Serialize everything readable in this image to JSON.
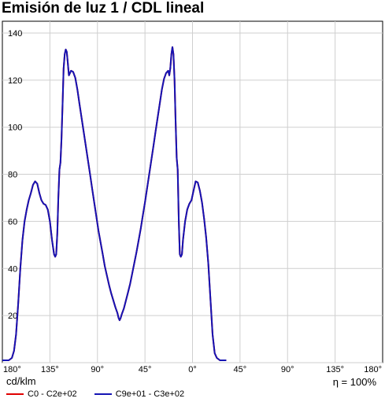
{
  "chart_data": {
    "type": "line",
    "title": "Emisión de luz 1 / CDL lineal",
    "ylabel": "cd/klm",
    "efficiency_label": "η = 100%",
    "ylim": [
      0,
      145
    ],
    "yticks": [
      20,
      40,
      60,
      80,
      100,
      120,
      140
    ],
    "xlim": [
      -180,
      180
    ],
    "xticks": [
      {
        "value": -180,
        "label": "180°"
      },
      {
        "value": -135,
        "label": "135°"
      },
      {
        "value": -90,
        "label": "90°"
      },
      {
        "value": -45,
        "label": "45°"
      },
      {
        "value": 0,
        "label": "0°"
      },
      {
        "value": 45,
        "label": "45°"
      },
      {
        "value": 90,
        "label": "90°"
      },
      {
        "value": 135,
        "label": "135°"
      },
      {
        "value": 180,
        "label": "180°"
      }
    ],
    "grid": true,
    "legend_position": "bottom",
    "series": [
      {
        "name": "C0 - C2e+02",
        "color": "#e00000",
        "points": [
          [
            -180,
            1
          ],
          [
            -177,
            1
          ],
          [
            -174,
            1
          ],
          [
            -171,
            2
          ],
          [
            -169,
            5
          ],
          [
            -167,
            12
          ],
          [
            -165,
            25
          ],
          [
            -163,
            40
          ],
          [
            -161,
            52
          ],
          [
            -159,
            60
          ],
          [
            -157,
            65
          ],
          [
            -155,
            69
          ],
          [
            -153,
            72
          ],
          [
            -151,
            75.5
          ],
          [
            -149,
            77
          ],
          [
            -147,
            76
          ],
          [
            -145,
            72
          ],
          [
            -143,
            69
          ],
          [
            -141,
            67.5
          ],
          [
            -139,
            67
          ],
          [
            -137,
            65
          ],
          [
            -135,
            60
          ],
          [
            -133,
            52
          ],
          [
            -131,
            46
          ],
          [
            -130,
            45
          ],
          [
            -129,
            46
          ],
          [
            -128,
            55
          ],
          [
            -127,
            70
          ],
          [
            -126,
            82
          ],
          [
            -125,
            85
          ],
          [
            -124,
            95
          ],
          [
            -123,
            110
          ],
          [
            -122,
            125
          ],
          [
            -121,
            131
          ],
          [
            -120,
            133
          ],
          [
            -119,
            132
          ],
          [
            -118,
            127
          ],
          [
            -117,
            122
          ],
          [
            -116,
            123
          ],
          [
            -115,
            124
          ],
          [
            -113,
            123.5
          ],
          [
            -111,
            121
          ],
          [
            -109,
            116
          ],
          [
            -107,
            110
          ],
          [
            -105,
            104
          ],
          [
            -103,
            98
          ],
          [
            -101,
            92
          ],
          [
            -99,
            86
          ],
          [
            -97,
            80
          ],
          [
            -95,
            74
          ],
          [
            -93,
            68
          ],
          [
            -91,
            62
          ],
          [
            -89,
            56
          ],
          [
            -87,
            51
          ],
          [
            -85,
            46
          ],
          [
            -83,
            41
          ],
          [
            -81,
            37
          ],
          [
            -79,
            33
          ],
          [
            -77,
            29.5
          ],
          [
            -75,
            26.5
          ],
          [
            -73,
            23.5
          ],
          [
            -71,
            21
          ],
          [
            -70,
            19
          ],
          [
            -69,
            18
          ],
          [
            -68,
            19
          ],
          [
            -67,
            20.5
          ],
          [
            -65,
            23
          ],
          [
            -63,
            26.5
          ],
          [
            -61,
            30
          ],
          [
            -59,
            33.5
          ],
          [
            -57,
            38
          ],
          [
            -55,
            42.5
          ],
          [
            -53,
            47
          ],
          [
            -51,
            52
          ],
          [
            -49,
            57
          ],
          [
            -47,
            62.5
          ],
          [
            -45,
            68
          ],
          [
            -43,
            74
          ],
          [
            -41,
            80
          ],
          [
            -39,
            86
          ],
          [
            -37,
            92
          ],
          [
            -35,
            98
          ],
          [
            -33,
            104
          ],
          [
            -31,
            110
          ],
          [
            -29,
            116
          ],
          [
            -27,
            120.5
          ],
          [
            -25,
            123
          ],
          [
            -23,
            124
          ],
          [
            -22,
            122
          ],
          [
            -21,
            125
          ],
          [
            -20,
            131
          ],
          [
            -19,
            134
          ],
          [
            -18,
            131
          ],
          [
            -17,
            120
          ],
          [
            -16,
            103
          ],
          [
            -15,
            87
          ],
          [
            -14,
            82
          ],
          [
            -13,
            60
          ],
          [
            -12,
            46
          ],
          [
            -11,
            45
          ],
          [
            -10,
            46
          ],
          [
            -9,
            52
          ],
          [
            -7,
            60
          ],
          [
            -5,
            65
          ],
          [
            -3,
            67.5
          ],
          [
            -1,
            69
          ],
          [
            1,
            73
          ],
          [
            3,
            77
          ],
          [
            5,
            76.5
          ],
          [
            7,
            73
          ],
          [
            9,
            68
          ],
          [
            11,
            61
          ],
          [
            13,
            53
          ],
          [
            15,
            42
          ],
          [
            17,
            27
          ],
          [
            19,
            12
          ],
          [
            21,
            4
          ],
          [
            23,
            2
          ],
          [
            26,
            1
          ],
          [
            29,
            1
          ],
          [
            32,
            1
          ]
        ]
      },
      {
        "name": "C9e+01 - C3e+02",
        "color": "#1414b4",
        "points": [
          [
            -180,
            1
          ],
          [
            -177,
            1
          ],
          [
            -174,
            1
          ],
          [
            -171,
            2
          ],
          [
            -169,
            5
          ],
          [
            -167,
            12
          ],
          [
            -165,
            25
          ],
          [
            -163,
            40
          ],
          [
            -161,
            52
          ],
          [
            -159,
            60
          ],
          [
            -157,
            65
          ],
          [
            -155,
            69
          ],
          [
            -153,
            72
          ],
          [
            -151,
            75.5
          ],
          [
            -149,
            77
          ],
          [
            -147,
            76
          ],
          [
            -145,
            72
          ],
          [
            -143,
            69
          ],
          [
            -141,
            67.5
          ],
          [
            -139,
            67
          ],
          [
            -137,
            65
          ],
          [
            -135,
            60
          ],
          [
            -133,
            52
          ],
          [
            -131,
            46
          ],
          [
            -130,
            45
          ],
          [
            -129,
            46
          ],
          [
            -128,
            55
          ],
          [
            -127,
            70
          ],
          [
            -126,
            82
          ],
          [
            -125,
            85
          ],
          [
            -124,
            95
          ],
          [
            -123,
            110
          ],
          [
            -122,
            125
          ],
          [
            -121,
            131
          ],
          [
            -120,
            133
          ],
          [
            -119,
            132
          ],
          [
            -118,
            127
          ],
          [
            -117,
            122
          ],
          [
            -116,
            123
          ],
          [
            -115,
            124
          ],
          [
            -113,
            123.5
          ],
          [
            -111,
            121
          ],
          [
            -109,
            116
          ],
          [
            -107,
            110
          ],
          [
            -105,
            104
          ],
          [
            -103,
            98
          ],
          [
            -101,
            92
          ],
          [
            -99,
            86
          ],
          [
            -97,
            80
          ],
          [
            -95,
            74
          ],
          [
            -93,
            68
          ],
          [
            -91,
            62
          ],
          [
            -89,
            56
          ],
          [
            -87,
            51
          ],
          [
            -85,
            46
          ],
          [
            -83,
            41
          ],
          [
            -81,
            37
          ],
          [
            -79,
            33
          ],
          [
            -77,
            29.5
          ],
          [
            -75,
            26.5
          ],
          [
            -73,
            23.5
          ],
          [
            -71,
            21
          ],
          [
            -70,
            19
          ],
          [
            -69,
            18
          ],
          [
            -68,
            19
          ],
          [
            -67,
            20.5
          ],
          [
            -65,
            23
          ],
          [
            -63,
            26.5
          ],
          [
            -61,
            30
          ],
          [
            -59,
            33.5
          ],
          [
            -57,
            38
          ],
          [
            -55,
            42.5
          ],
          [
            -53,
            47
          ],
          [
            -51,
            52
          ],
          [
            -49,
            57
          ],
          [
            -47,
            62.5
          ],
          [
            -45,
            68
          ],
          [
            -43,
            74
          ],
          [
            -41,
            80
          ],
          [
            -39,
            86
          ],
          [
            -37,
            92
          ],
          [
            -35,
            98
          ],
          [
            -33,
            104
          ],
          [
            -31,
            110
          ],
          [
            -29,
            116
          ],
          [
            -27,
            120.5
          ],
          [
            -25,
            123
          ],
          [
            -23,
            124
          ],
          [
            -22,
            122
          ],
          [
            -21,
            125
          ],
          [
            -20,
            131
          ],
          [
            -19,
            134
          ],
          [
            -18,
            131
          ],
          [
            -17,
            120
          ],
          [
            -16,
            103
          ],
          [
            -15,
            87
          ],
          [
            -14,
            82
          ],
          [
            -13,
            60
          ],
          [
            -12,
            46
          ],
          [
            -11,
            45
          ],
          [
            -10,
            46
          ],
          [
            -9,
            52
          ],
          [
            -7,
            60
          ],
          [
            -5,
            65
          ],
          [
            -3,
            67.5
          ],
          [
            -1,
            69
          ],
          [
            1,
            73
          ],
          [
            3,
            77
          ],
          [
            5,
            76.5
          ],
          [
            7,
            73
          ],
          [
            9,
            68
          ],
          [
            11,
            61
          ],
          [
            13,
            53
          ],
          [
            15,
            42
          ],
          [
            17,
            27
          ],
          [
            19,
            12
          ],
          [
            21,
            4
          ],
          [
            23,
            2
          ],
          [
            26,
            1
          ],
          [
            29,
            1
          ],
          [
            32,
            1
          ]
        ]
      }
    ]
  }
}
